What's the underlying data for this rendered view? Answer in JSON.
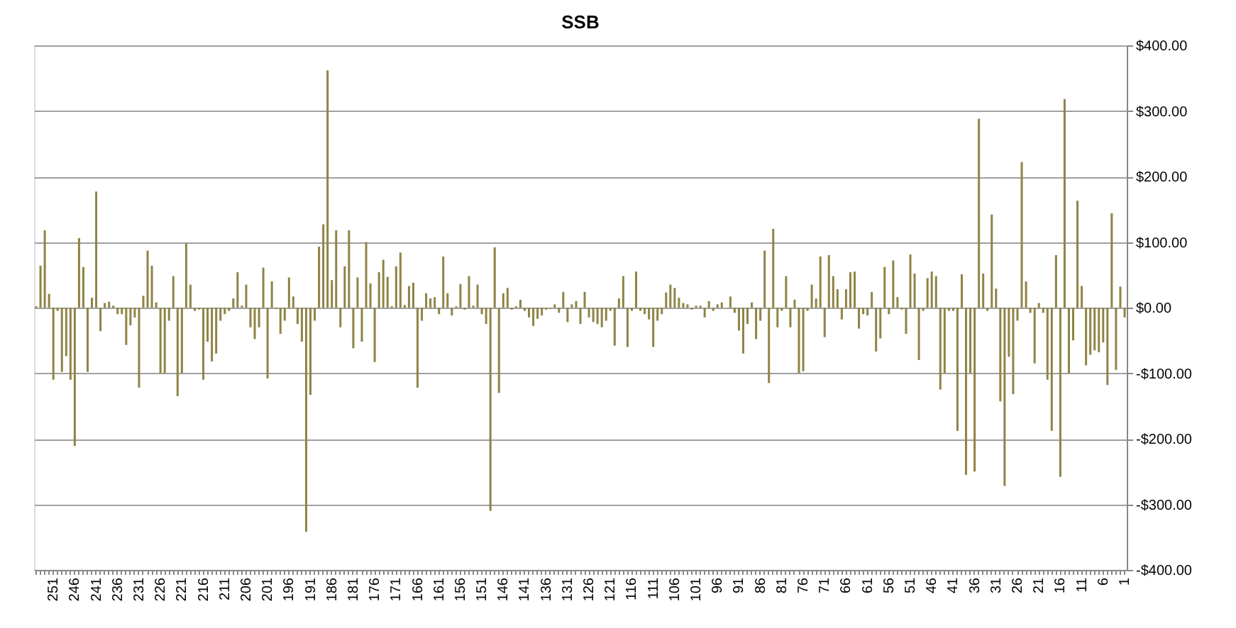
{
  "chart_data": {
    "type": "bar",
    "title": "SSB",
    "categories": [
      null,
      null,
      null,
      null,
      "251",
      null,
      null,
      null,
      null,
      "246",
      null,
      null,
      null,
      null,
      "241",
      null,
      null,
      null,
      null,
      "236",
      null,
      null,
      null,
      null,
      "231",
      null,
      null,
      null,
      null,
      "226",
      null,
      null,
      null,
      null,
      "221",
      null,
      null,
      null,
      null,
      "216",
      null,
      null,
      null,
      null,
      "211",
      null,
      null,
      null,
      null,
      "206",
      null,
      null,
      null,
      null,
      "201",
      null,
      null,
      null,
      null,
      "196",
      null,
      null,
      null,
      null,
      "191",
      null,
      null,
      null,
      null,
      "186",
      null,
      null,
      null,
      null,
      "181",
      null,
      null,
      null,
      null,
      "176",
      null,
      null,
      null,
      null,
      "171",
      null,
      null,
      null,
      null,
      "166",
      null,
      null,
      null,
      null,
      "161",
      null,
      null,
      null,
      null,
      "156",
      null,
      null,
      null,
      null,
      "151",
      null,
      null,
      null,
      null,
      "146",
      null,
      null,
      null,
      null,
      "141",
      null,
      null,
      null,
      null,
      "136",
      null,
      null,
      null,
      null,
      "131",
      null,
      null,
      null,
      null,
      "126",
      null,
      null,
      null,
      null,
      "121",
      null,
      null,
      null,
      null,
      "116",
      null,
      null,
      null,
      null,
      "111",
      null,
      null,
      null,
      null,
      "106",
      null,
      null,
      null,
      null,
      "101",
      null,
      null,
      null,
      null,
      "96",
      null,
      null,
      null,
      null,
      "91",
      null,
      null,
      null,
      null,
      "86",
      null,
      null,
      null,
      null,
      "81",
      null,
      null,
      null,
      null,
      "76",
      null,
      null,
      null,
      null,
      "71",
      null,
      null,
      null,
      null,
      "66",
      null,
      null,
      null,
      null,
      "61",
      null,
      null,
      null,
      null,
      "56",
      null,
      null,
      null,
      null,
      "51",
      null,
      null,
      null,
      null,
      "46",
      null,
      null,
      null,
      null,
      "41",
      null,
      null,
      null,
      null,
      "36",
      null,
      null,
      null,
      null,
      "31",
      null,
      null,
      null,
      null,
      "26",
      null,
      null,
      null,
      null,
      "21",
      null,
      null,
      null,
      null,
      "16",
      null,
      null,
      null,
      null,
      "11",
      null,
      null,
      null,
      null,
      "6",
      null,
      null,
      null,
      null,
      "1"
    ],
    "values": [
      2,
      64,
      118,
      21,
      -110,
      -5,
      -98,
      -74,
      -110,
      -211,
      106,
      62,
      -98,
      15,
      177,
      -36,
      7,
      9,
      3,
      -10,
      -10,
      -57,
      -27,
      -15,
      -122,
      18,
      87,
      64,
      8,
      -100,
      -100,
      -20,
      48,
      -135,
      -100,
      98,
      35,
      -5,
      -3,
      -110,
      -52,
      -82,
      -70,
      -20,
      -10,
      -5,
      14,
      54,
      3,
      35,
      -30,
      -48,
      -30,
      61,
      -108,
      40,
      -2,
      -40,
      -20,
      46,
      17,
      -25,
      -52,
      -342,
      -133,
      -20,
      93,
      127,
      362,
      42,
      118,
      -30,
      63,
      118,
      -62,
      46,
      -52,
      100,
      37,
      -83,
      54,
      73,
      47,
      2,
      63,
      84,
      4,
      33,
      38,
      -122,
      -20,
      22,
      14,
      16,
      -10,
      78,
      22,
      -12,
      2,
      36,
      -3,
      48,
      3,
      35,
      -10,
      -25,
      -310,
      92,
      -130,
      22,
      30,
      -3,
      2,
      12,
      -5,
      -15,
      -28,
      -17,
      -12,
      -3,
      -2,
      5,
      -8,
      24,
      -22,
      5,
      10,
      -25,
      24,
      -15,
      -22,
      -25,
      -30,
      -20,
      -5,
      -58,
      14,
      48,
      -60,
      -5,
      55,
      -5,
      -10,
      -18,
      -60,
      -20,
      -10,
      23,
      35,
      30,
      15,
      7,
      5,
      -3,
      3,
      3,
      -15,
      10,
      -5,
      5,
      8,
      0,
      17,
      -8,
      -35,
      -70,
      -25,
      8,
      -48,
      -20,
      87,
      -115,
      120,
      -30,
      -5,
      48,
      -30,
      12,
      -100,
      -97,
      -5,
      35,
      14,
      78,
      -45,
      80,
      48,
      28,
      -18,
      28,
      54,
      55,
      -32,
      -10,
      -12,
      24,
      -67,
      -47,
      62,
      -10,
      72,
      16,
      -3,
      -40,
      81,
      52,
      -80,
      -5,
      45,
      55,
      48,
      -125,
      -100,
      -5,
      -5,
      -188,
      51,
      -255,
      -100,
      -250,
      288,
      52,
      -5,
      142,
      29,
      -143,
      -272,
      -75,
      -132,
      -20,
      222,
      40,
      -8,
      -85,
      7,
      -8,
      -110,
      -188,
      80,
      -258,
      318,
      -100,
      -50,
      163,
      33,
      -88,
      -72,
      -65,
      -68,
      -53,
      -118,
      144,
      -95,
      32,
      -15
    ],
    "color": "#8f8446",
    "ylim": [
      -400,
      400
    ],
    "yticks": [
      {
        "value": -400,
        "label": "-$400.00"
      },
      {
        "value": -300,
        "label": "-$300.00"
      },
      {
        "value": -200,
        "label": "-$200.00"
      },
      {
        "value": -100,
        "label": "-$100.00"
      },
      {
        "value": 0,
        "label": "$0.00"
      },
      {
        "value": 100,
        "label": "$100.00"
      },
      {
        "value": 200,
        "label": "$200.00"
      },
      {
        "value": 300,
        "label": "$300.00"
      },
      {
        "value": 400,
        "label": "$400.00"
      }
    ],
    "grid": "y"
  }
}
